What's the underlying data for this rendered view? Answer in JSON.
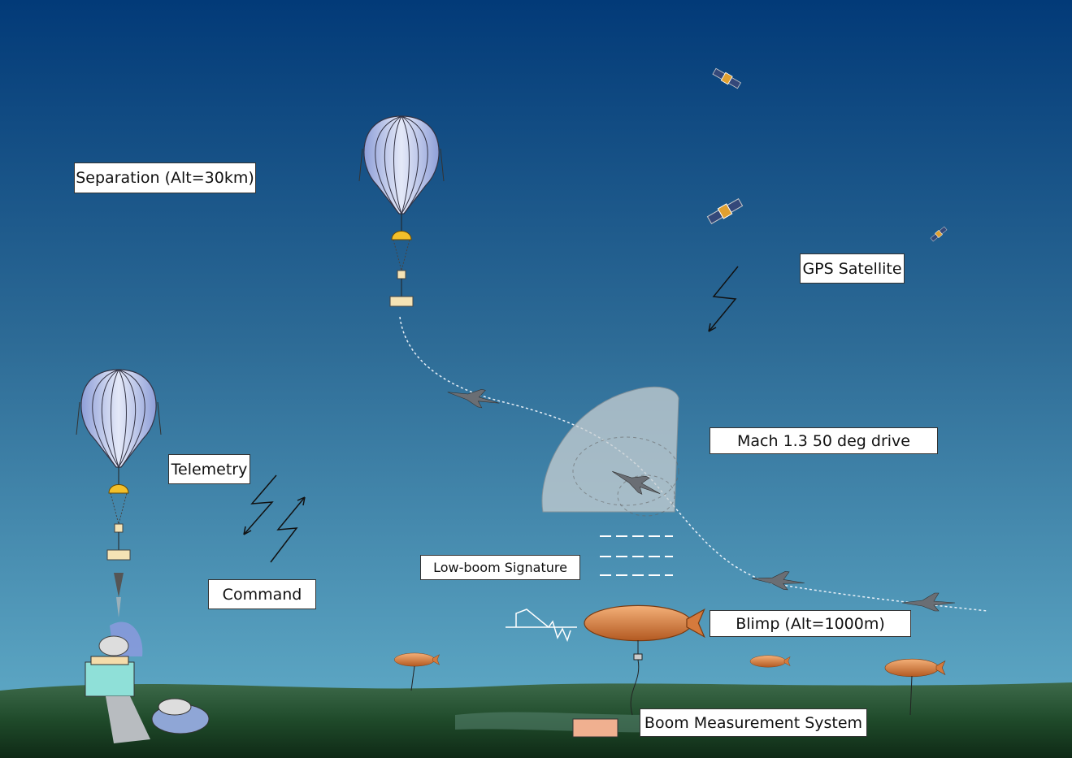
{
  "labels": [
    "Separation (Alt=30km)",
    "GPS Satellite",
    "Mach 1.3 50 deg drive",
    "Telemetry",
    "Command",
    "Low-boom Signature",
    "Blimp (Alt=1000m)",
    "Boom Measurement System"
  ]
}
